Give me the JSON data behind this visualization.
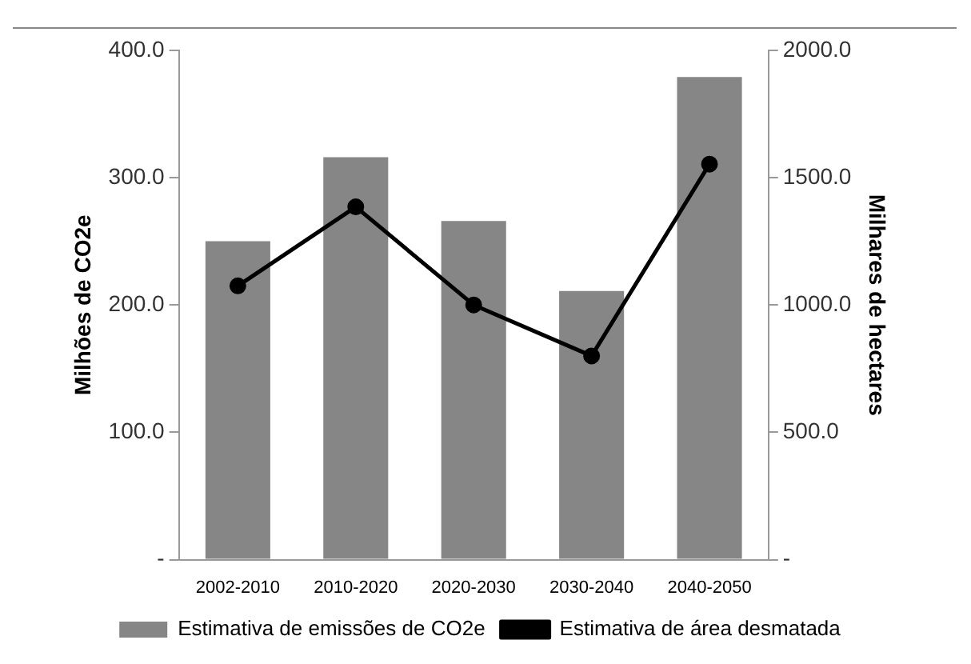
{
  "chart_data": {
    "type": "bar",
    "categories": [
      "2002-2010",
      "2010-2020",
      "2020-2030",
      "2030-2040",
      "2040-2050"
    ],
    "series": [
      {
        "name": "Estimativa de emissões de CO2e",
        "color": "#868686",
        "values": [
          250,
          316,
          266,
          211,
          379
        ]
      },
      {
        "name": "Estimativa de área desmatada",
        "type": "line",
        "axis": "y2",
        "color": "#000000",
        "values": [
          1075,
          1385,
          1000,
          800,
          1553
        ]
      }
    ],
    "ylabel": "Milhões de CO2e",
    "y2label": "Milhares de hectares",
    "ylim": [
      0,
      400
    ],
    "yticks": [
      {
        "value": 0,
        "label": "-"
      },
      {
        "value": 100,
        "label": "100.0"
      },
      {
        "value": 200,
        "label": "200.0"
      },
      {
        "value": 300,
        "label": "300.0"
      },
      {
        "value": 400,
        "label": "400.0"
      }
    ],
    "y2lim": [
      0,
      2000
    ],
    "y2ticks": [
      {
        "value": 0,
        "label": "-"
      },
      {
        "value": 500,
        "label": "500.0"
      },
      {
        "value": 1000,
        "label": "1000.0"
      },
      {
        "value": 1500,
        "label": "1500.0"
      },
      {
        "value": 2000,
        "label": "2000.0"
      }
    ],
    "grid": false,
    "legend": "bottom",
    "marker": "circle",
    "line_style": "solid"
  }
}
